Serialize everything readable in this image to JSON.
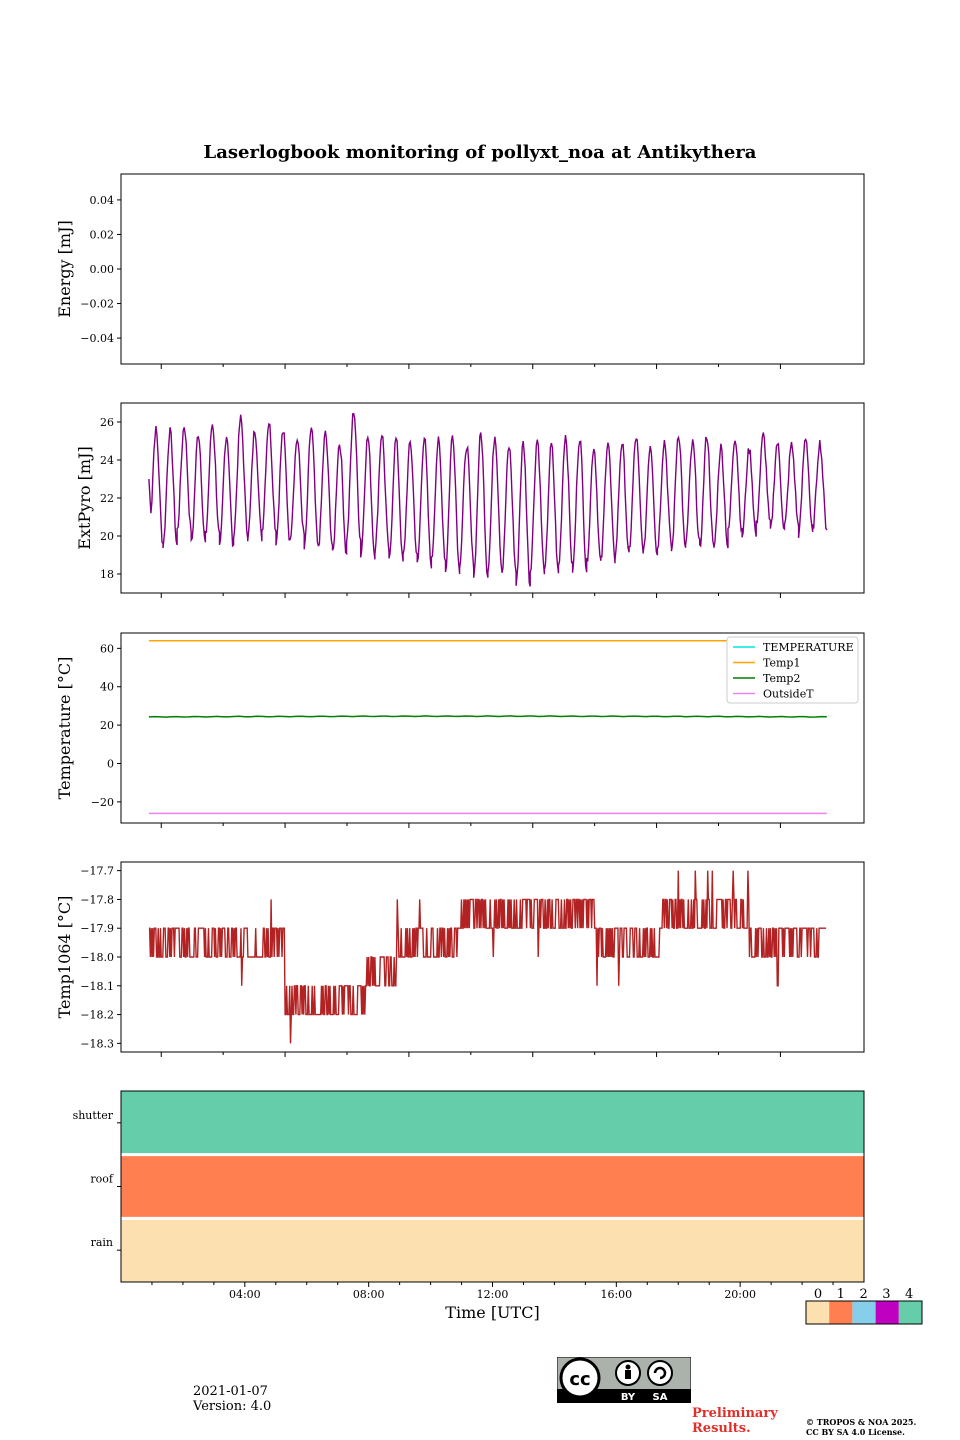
{
  "title": "Laserlogbook monitoring of pollyxt_noa at Antikythera",
  "footer": {
    "date": "2021-01-07",
    "version": "Version: 4.0",
    "preliminary": "Preliminary Results.",
    "copyright_line1": "© TROPOS & NOA 2025.",
    "copyright_line2": "CC BY SA 4.0 License.",
    "cc_labels": [
      "BY",
      "SA"
    ]
  },
  "chart_data": [
    {
      "type": "line",
      "ylabel": "Energy [mJ]",
      "ylim": [
        -0.055,
        0.055
      ],
      "yticks": [
        0.04,
        0.02,
        0.0,
        -0.02,
        -0.04
      ],
      "yticklabels": [
        "0.04",
        "0.02",
        "0.00",
        "−0.02",
        "−0.04"
      ],
      "series": []
    },
    {
      "type": "line",
      "ylabel": "ExtPyro [mJ]",
      "ylim": [
        17,
        27
      ],
      "yticks": [
        26,
        24,
        22,
        20,
        18
      ],
      "yticklabels": [
        "26",
        "24",
        "22",
        "20",
        "18"
      ],
      "series": [
        {
          "color": "#800080",
          "x_start_hours": 0.9,
          "x_end_hours": 22.8,
          "description_values": {
            "cycles": 48,
            "max": [
              25.6,
              25.5,
              25.8,
              25.4,
              25.9,
              25.3,
              26.2,
              25.6,
              26.0,
              25.5,
              25.1,
              25.7,
              25.4,
              24.9,
              26.6,
              25.2,
              25.4,
              25.1,
              24.9,
              25.2,
              25.0,
              25.3,
              24.8,
              25.4,
              25.3,
              24.7,
              24.9,
              25.1,
              24.8,
              25.3,
              25.2,
              24.7,
              25.0,
              24.9,
              25.2,
              24.8,
              25.0,
              25.4,
              24.9,
              25.3,
              24.7,
              25.2,
              24.6,
              25.3,
              24.9,
              24.8,
              25.2,
              24.9
            ],
            "min": [
              19.6,
              19.5,
              20.3,
              19.6,
              20.0,
              19.3,
              20.1,
              19.9,
              20.3,
              19.7,
              20.0,
              19.3,
              19.5,
              19.0,
              19.8,
              19.0,
              19.2,
              18.6,
              18.9,
              18.5,
              18.7,
              18.2,
              18.5,
              17.9,
              18.3,
              18.1,
              17.4,
              18.2,
              18.0,
              18.4,
              18.2,
              18.6,
              18.7,
              18.9,
              19.3,
              19.0,
              19.4,
              19.2,
              19.6,
              19.3,
              19.4,
              20.2,
              20.0,
              20.6,
              20.3,
              20.5,
              20.1,
              20.4
            ]
          }
        }
      ]
    },
    {
      "type": "line",
      "ylabel": "Temperature [°C]",
      "ylim": [
        -31,
        68
      ],
      "yticks": [
        60,
        40,
        20,
        0,
        -20
      ],
      "yticklabels": [
        "60",
        "40",
        "20",
        "0",
        "−20"
      ],
      "legend": {
        "placement": "upper right",
        "entries": [
          "TEMPERATURE",
          "Temp1",
          "Temp2",
          "OutsideT"
        ]
      },
      "series": [
        {
          "name": "TEMPERATURE",
          "color": "#00e5e5",
          "values_constant": null
        },
        {
          "name": "Temp1",
          "color": "#ffa500",
          "values_constant": 64.0
        },
        {
          "name": "Temp2",
          "color": "#008000",
          "values_constant": 24.3
        },
        {
          "name": "OutsideT",
          "color": "#ee82ee",
          "values_constant": -26.0
        }
      ]
    },
    {
      "type": "line",
      "ylabel": "Temp1064 [°C]",
      "ylim": [
        -18.33,
        -17.67
      ],
      "yticks": [
        -17.7,
        -17.8,
        -17.9,
        -18.0,
        -18.1,
        -18.2,
        -18.3
      ],
      "yticklabels": [
        "−17.7",
        "−17.8",
        "−17.9",
        "−18.0",
        "−18.1",
        "−18.2",
        "−18.3"
      ],
      "series": [
        {
          "color": "#b22222",
          "x_start_hours": 0.9,
          "x_end_hours": 22.8,
          "segments": [
            {
              "from": 0.9,
              "to": 4.1,
              "base": -17.9,
              "alt": -18.0
            },
            {
              "from": 4.1,
              "to": 5.3,
              "base": -18.0,
              "alt": -17.9
            },
            {
              "from": 5.3,
              "to": 6.1,
              "base": -18.1,
              "alt": -18.2
            },
            {
              "from": 6.1,
              "to": 7.9,
              "base": -18.2,
              "alt": -18.1
            },
            {
              "from": 7.9,
              "to": 8.9,
              "base": -18.1,
              "alt": -18.0
            },
            {
              "from": 8.9,
              "to": 10.9,
              "base": -18.0,
              "alt": -17.9
            },
            {
              "from": 10.9,
              "to": 11.9,
              "base": -17.9,
              "alt": -17.8
            },
            {
              "from": 11.9,
              "to": 15.3,
              "base": -17.8,
              "alt": -17.9
            },
            {
              "from": 15.3,
              "to": 17.4,
              "base": -17.9,
              "alt": -18.0
            },
            {
              "from": 17.4,
              "to": 20.3,
              "base": -17.9,
              "alt": -17.8
            },
            {
              "from": 20.3,
              "to": 22.8,
              "base": -17.9,
              "alt": -18.0
            }
          ]
        }
      ]
    },
    {
      "type": "heatmap",
      "rows": [
        "shutter",
        "roof",
        "rain"
      ],
      "row_values": [
        4,
        1,
        0
      ],
      "xlabel": "Time [UTC]",
      "xticks_hours": [
        4,
        8,
        12,
        16,
        20
      ],
      "xticklabels": [
        "04:00",
        "08:00",
        "12:00",
        "16:00",
        "20:00"
      ],
      "xlim_hours": [
        0,
        24
      ]
    }
  ],
  "colorbar": {
    "labels": [
      "0",
      "1",
      "2",
      "3",
      "4"
    ],
    "colors": [
      "#fde0b0",
      "#ff7f50",
      "#87ceeb",
      "#c000c0",
      "#66cdaa"
    ]
  }
}
